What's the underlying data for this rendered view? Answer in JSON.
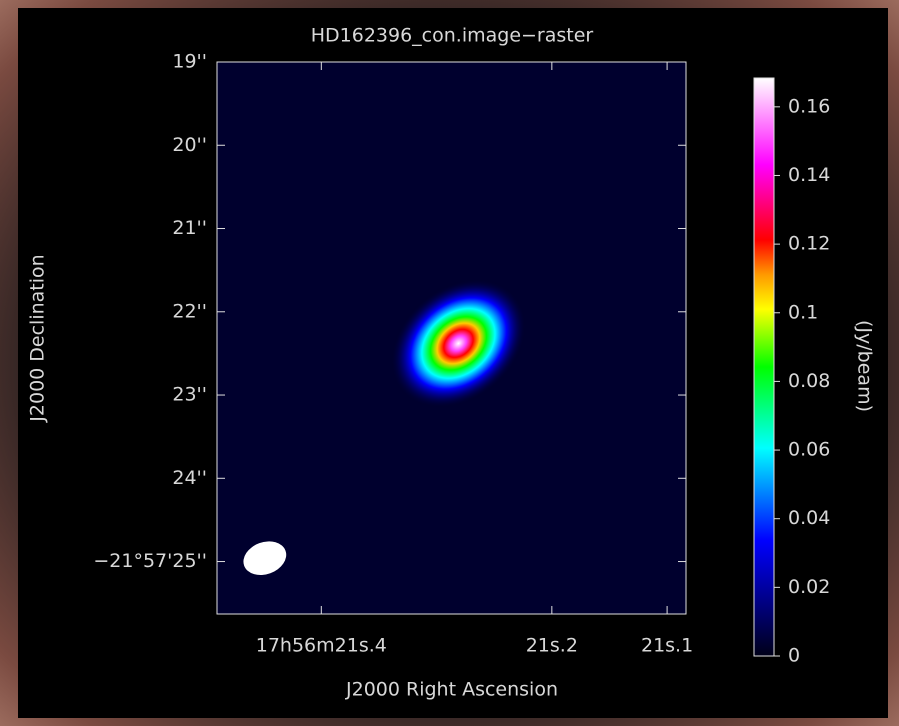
{
  "chart_data": {
    "type": "raster",
    "title": "HD162396_con.image−raster",
    "x_label": "J2000 Right Ascension",
    "y_label": "J2000 Declination",
    "colorbar_label": "(Jy/beam)",
    "xlim": [
      21.4905,
      21.0836
    ],
    "xticks": [
      {
        "value": 21.4,
        "label": "17h56m21s.4"
      },
      {
        "value": 21.2,
        "label": "21s.2"
      },
      {
        "value": 21.1,
        "label": "21s.1"
      }
    ],
    "ylim": [
      25.63,
      19
    ],
    "yticks": [
      {
        "value": 19,
        "label": "19''"
      },
      {
        "value": 20,
        "label": "20''"
      },
      {
        "value": 21,
        "label": "21''"
      },
      {
        "value": 22,
        "label": "22''"
      },
      {
        "value": 23,
        "label": "23''"
      },
      {
        "value": 24,
        "label": "24''"
      },
      {
        "value": 25,
        "label": "−21°57'25''"
      }
    ],
    "clim": [
      0,
      0.1684
    ],
    "cticks": [
      {
        "value": 0,
        "label": "0"
      },
      {
        "value": 0.02,
        "label": "0.02"
      },
      {
        "value": 0.04,
        "label": "0.04"
      },
      {
        "value": 0.06,
        "label": "0.06"
      },
      {
        "value": 0.08,
        "label": "0.08"
      },
      {
        "value": 0.1,
        "label": "0.1"
      },
      {
        "value": 0.12,
        "label": "0.12"
      },
      {
        "value": 0.14,
        "label": "0.14"
      },
      {
        "value": 0.16,
        "label": "0.16"
      }
    ],
    "source": {
      "ra": 21.281,
      "dec": 22.38,
      "peak": 0.165
    },
    "beam": {
      "ra": 21.449,
      "dec": 24.96
    }
  }
}
